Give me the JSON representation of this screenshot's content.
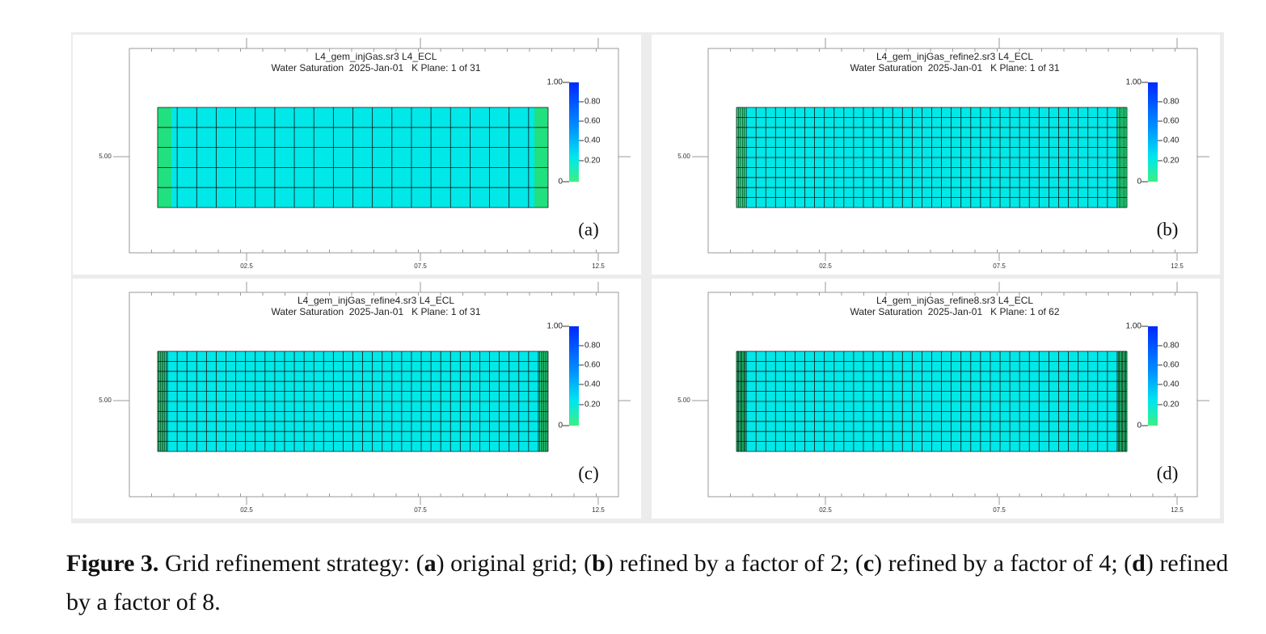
{
  "figure": {
    "panels": [
      {
        "title_line1": "L4_gem_injGas.sr3 L4_ECL",
        "title_line2": "Water Saturation  2025-Jan-01   K Plane: 1 of 31",
        "y_tick": "5.00",
        "x_ticks": [
          "02.5",
          "07.5",
          "12.5"
        ],
        "colorbar_ticks": [
          "1.00",
          "0.80",
          "0.60",
          "0.40",
          "0.20",
          "0"
        ],
        "label": "(a)"
      },
      {
        "title_line1": "L4_gem_injGas_refine2.sr3 L4_ECL",
        "title_line2": "Water Saturation  2025-Jan-01   K Plane: 1 of 31",
        "y_tick": "5.00",
        "x_ticks": [
          "02.5",
          "07.5",
          "12.5"
        ],
        "colorbar_ticks": [
          "1.00",
          "0.80",
          "0.60",
          "0.40",
          "0.20",
          "0"
        ],
        "label": "(b)"
      },
      {
        "title_line1": "L4_gem_injGas_refine4.sr3 L4_ECL",
        "title_line2": "Water Saturation  2025-Jan-01   K Plane: 1 of 31",
        "y_tick": "5.00",
        "x_ticks": [
          "02.5",
          "07.5",
          "12.5"
        ],
        "colorbar_ticks": [
          "1.00",
          "0.80",
          "0.60",
          "0.40",
          "0.20",
          "0"
        ],
        "label": "(c)"
      },
      {
        "title_line1": "L4_gem_injGas_refine8.sr3 L4_ECL",
        "title_line2": "Water Saturation  2025-Jan-01   K Plane: 1 of 62",
        "y_tick": "5.00",
        "x_ticks": [
          "02.5",
          "07.5",
          "12.5"
        ],
        "colorbar_ticks": [
          "1.00",
          "0.80",
          "0.60",
          "0.40",
          "0.20",
          "0"
        ],
        "label": "(d)"
      }
    ],
    "caption": [
      {
        "text": "Figure 3.",
        "bold": true
      },
      {
        "text": " Grid refinement strategy: ("
      },
      {
        "text": "a",
        "bold": true
      },
      {
        "text": ") original grid; ("
      },
      {
        "text": "b",
        "bold": true
      },
      {
        "text": ") refined by a factor of 2; ("
      },
      {
        "text": "c",
        "bold": true
      },
      {
        "text": ") refined by a factor of 4; ("
      },
      {
        "text": "d",
        "bold": true
      },
      {
        "text": ") refined by a factor of 8."
      }
    ]
  }
}
